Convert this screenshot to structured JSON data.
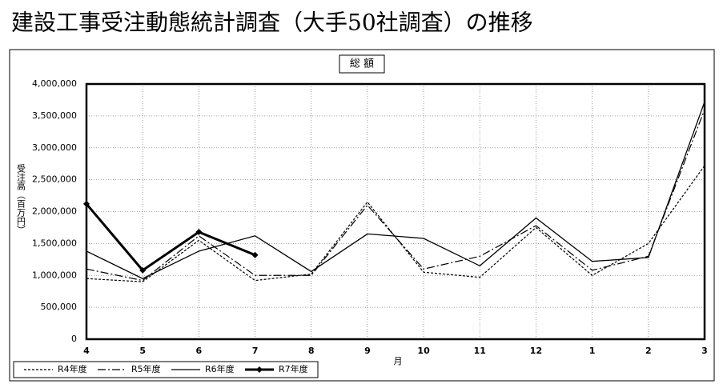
{
  "title": "建設工事受注動態統計調査（大手50社調査）の推移",
  "chart_data": {
    "type": "line",
    "title": "総 額",
    "y_label": "受注高（百万円）",
    "x_label": "月",
    "categories": [
      "4",
      "5",
      "6",
      "7",
      "8",
      "9",
      "10",
      "11",
      "12",
      "1",
      "2",
      "3"
    ],
    "series": [
      {
        "name": "R4年度",
        "color": "#000000",
        "style": "dashed",
        "values": [
          950000,
          900000,
          1550000,
          920000,
          1020000,
          2150000,
          1050000,
          970000,
          1750000,
          1000000,
          1500000,
          2720000
        ]
      },
      {
        "name": "R5年度",
        "color": "#000000",
        "style": "dashdot",
        "values": [
          1100000,
          920000,
          1620000,
          1000000,
          1000000,
          2100000,
          1100000,
          1300000,
          1780000,
          1080000,
          1300000,
          3600000
        ]
      },
      {
        "name": "R6年度",
        "color": "#000000",
        "style": "solid",
        "values": [
          1380000,
          950000,
          1380000,
          1620000,
          1060000,
          1650000,
          1580000,
          1150000,
          1900000,
          1220000,
          1280000,
          3720000
        ]
      },
      {
        "name": "R7年度",
        "color": "#000000",
        "style": "bold",
        "marker": "diamond",
        "values": [
          2120000,
          1080000,
          1680000,
          1320000,
          null,
          null,
          null,
          null,
          null,
          null,
          null,
          null
        ]
      }
    ],
    "ylim": [
      0,
      4000000
    ],
    "yticks": [
      0,
      {
        "value": 500000,
        "label": "500,000"
      },
      {
        "value": 1000000,
        "label": "1,000,000"
      },
      {
        "value": 1500000,
        "label": "1,500,000"
      },
      {
        "value": 2000000,
        "label": "2,000,000"
      },
      {
        "value": 2500000,
        "label": "2,500,000"
      },
      {
        "value": 3000000,
        "label": "3,000,000"
      },
      {
        "value": 3500000,
        "label": "3,500,000"
      },
      {
        "value": 4000000,
        "label": "4,000,000"
      }
    ],
    "grid": true,
    "legend": "bottom-left"
  }
}
